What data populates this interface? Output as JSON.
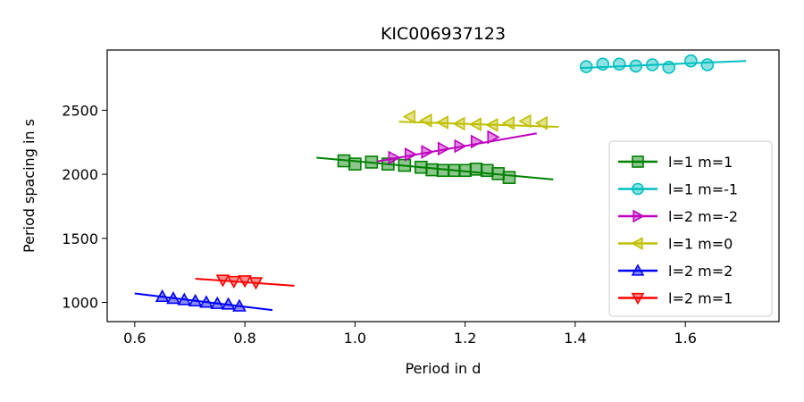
{
  "chart_data": {
    "type": "line",
    "title": "KIC006937123",
    "xlabel": "Period in d",
    "ylabel": "Period spacing in s",
    "xlim": [
      0.55,
      1.77
    ],
    "ylim": [
      850,
      2970
    ],
    "xticks": [
      0.6,
      0.8,
      1.0,
      1.2,
      1.4,
      1.6
    ],
    "xtick_labels": [
      "0.6",
      "0.8",
      "1.0",
      "1.2",
      "1.4",
      "1.6"
    ],
    "yticks": [
      1000,
      1500,
      2000,
      2500
    ],
    "ytick_labels": [
      "1000",
      "1500",
      "2000",
      "2500"
    ],
    "grid": false,
    "legend_position": "center-right",
    "series": [
      {
        "name": "l=1 m=1",
        "color": "#008000",
        "marker": "square",
        "fit": [
          [
            0.93,
            2130
          ],
          [
            1.36,
            1960
          ]
        ],
        "x": [
          0.98,
          1.0,
          1.03,
          1.06,
          1.09,
          1.12,
          1.14,
          1.16,
          1.18,
          1.2,
          1.22,
          1.24,
          1.26,
          1.28
        ],
        "y": [
          2105,
          2080,
          2095,
          2080,
          2070,
          2055,
          2035,
          2030,
          2030,
          2030,
          2040,
          2030,
          2005,
          1975
        ]
      },
      {
        "name": "l=1 m=-1",
        "color": "#00BFBF",
        "marker": "circle",
        "fit": [
          [
            1.41,
            2830
          ],
          [
            1.71,
            2885
          ]
        ],
        "x": [
          1.42,
          1.45,
          1.48,
          1.51,
          1.54,
          1.57,
          1.61,
          1.64
        ],
        "y": [
          2840,
          2860,
          2860,
          2845,
          2855,
          2835,
          2885,
          2855
        ]
      },
      {
        "name": "l=2 m=-2",
        "color": "#BF00BF",
        "marker": "triangle-right",
        "fit": [
          [
            1.04,
            2100
          ],
          [
            1.33,
            2320
          ]
        ],
        "x": [
          1.07,
          1.1,
          1.13,
          1.16,
          1.19,
          1.22,
          1.25
        ],
        "y": [
          2130,
          2155,
          2175,
          2200,
          2220,
          2255,
          2290
        ]
      },
      {
        "name": "l=1 m=0",
        "color": "#BFBF00",
        "marker": "triangle-left",
        "fit": [
          [
            1.08,
            2410
          ],
          [
            1.37,
            2370
          ]
        ],
        "x": [
          1.1,
          1.13,
          1.16,
          1.19,
          1.22,
          1.25,
          1.28,
          1.31,
          1.34
        ],
        "y": [
          2450,
          2420,
          2405,
          2395,
          2390,
          2385,
          2400,
          2415,
          2400
        ]
      },
      {
        "name": "l=2 m=2",
        "color": "#0000FF",
        "marker": "triangle-up",
        "fit": [
          [
            0.6,
            1070
          ],
          [
            0.85,
            940
          ]
        ],
        "x": [
          0.65,
          0.67,
          0.69,
          0.71,
          0.73,
          0.75,
          0.77,
          0.79
        ],
        "y": [
          1045,
          1030,
          1020,
          1010,
          1000,
          990,
          985,
          970
        ]
      },
      {
        "name": "l=2 m=1",
        "color": "#FF0000",
        "marker": "triangle-down",
        "fit": [
          [
            0.71,
            1185
          ],
          [
            0.89,
            1130
          ]
        ],
        "x": [
          0.76,
          0.78,
          0.8,
          0.82
        ],
        "y": [
          1175,
          1165,
          1170,
          1155
        ]
      }
    ]
  }
}
